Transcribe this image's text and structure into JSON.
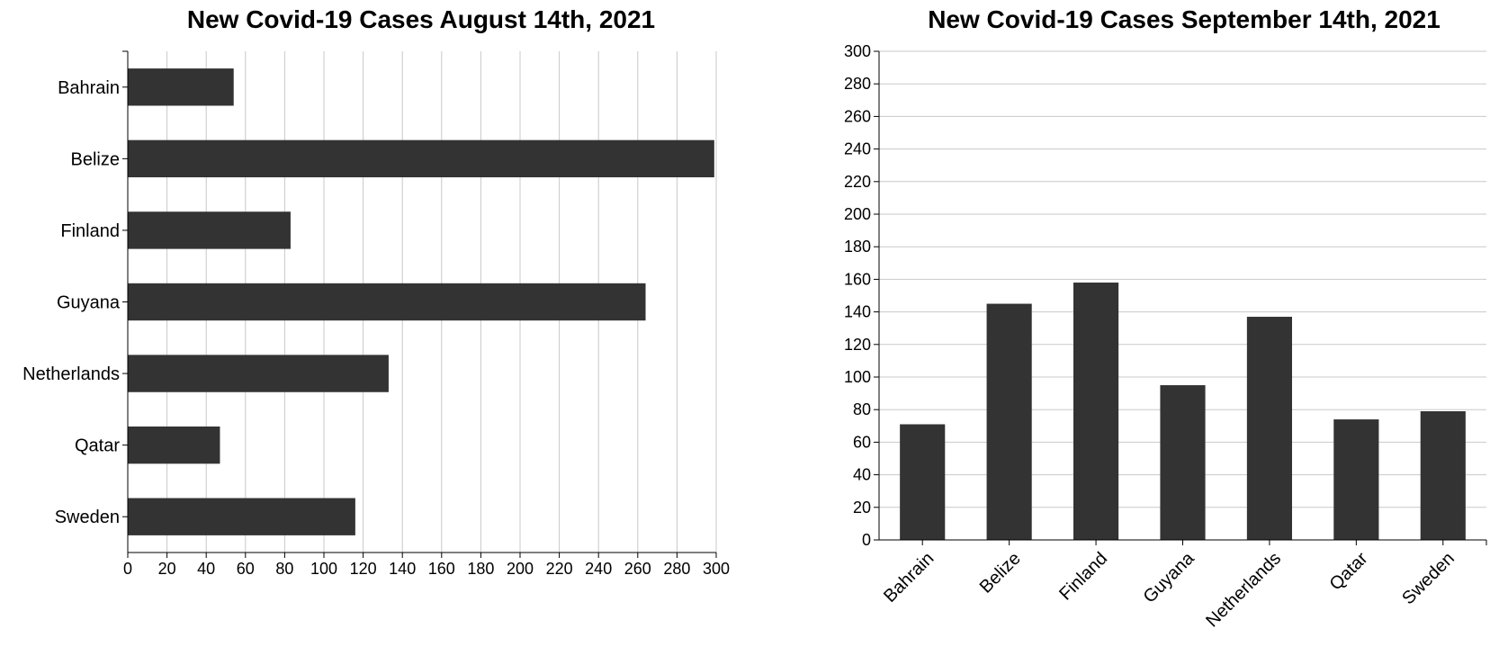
{
  "chart_data": [
    {
      "type": "bar",
      "orientation": "horizontal",
      "title": "New Covid-19 Cases August 14th, 2021",
      "categories": [
        "Bahrain",
        "Belize",
        "Finland",
        "Guyana",
        "Netherlands",
        "Qatar",
        "Sweden"
      ],
      "values": [
        54,
        299,
        83,
        264,
        133,
        47,
        116
      ],
      "xlabel": "",
      "ylabel": "",
      "xlim": [
        0,
        300
      ],
      "ticks": [
        0,
        20,
        40,
        60,
        80,
        100,
        120,
        140,
        160,
        180,
        200,
        220,
        240,
        260,
        280,
        300
      ],
      "grid": true,
      "bar_color": "#333333"
    },
    {
      "type": "bar",
      "orientation": "vertical",
      "title": "New Covid-19 Cases September 14th, 2021",
      "categories": [
        "Bahrain",
        "Belize",
        "Finland",
        "Guyana",
        "Netherlands",
        "Qatar",
        "Sweden"
      ],
      "values": [
        71,
        145,
        158,
        95,
        137,
        74,
        79
      ],
      "xlabel": "",
      "ylabel": "",
      "ylim": [
        0,
        300
      ],
      "ticks": [
        0,
        20,
        40,
        60,
        80,
        100,
        120,
        140,
        160,
        180,
        200,
        220,
        240,
        260,
        280,
        300
      ],
      "grid": true,
      "bar_color": "#333333"
    }
  ]
}
